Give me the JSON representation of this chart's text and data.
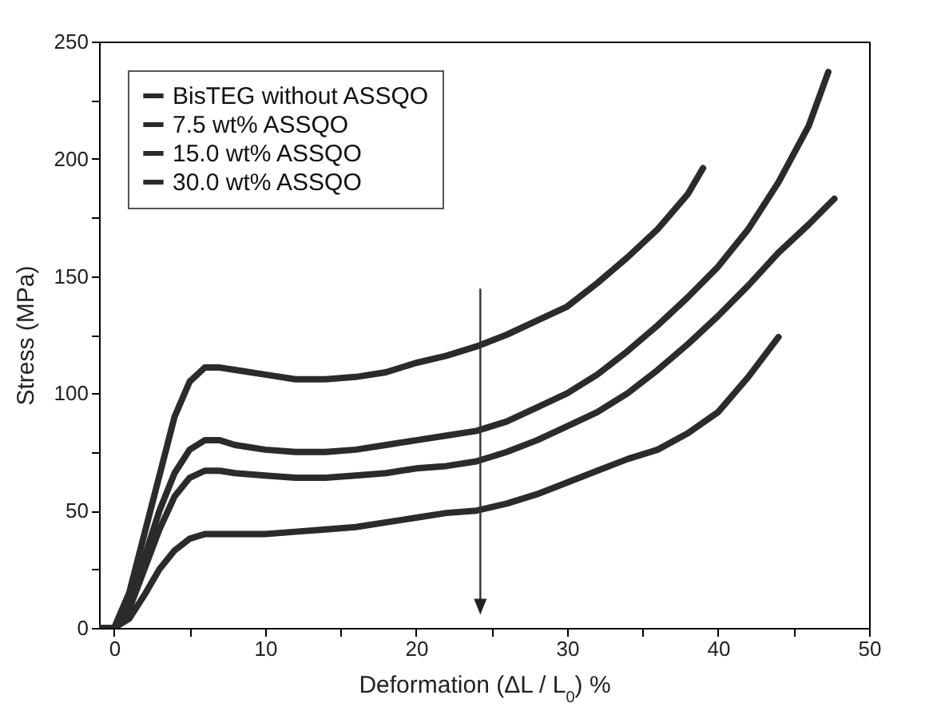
{
  "chart_data": {
    "type": "line",
    "xlabel": "Deformation (ΔL / L$_{0}$) %",
    "ylabel": "Stress (MPa)",
    "xlim": [
      -1,
      50
    ],
    "xticks": [
      0,
      {
        "value": 5,
        "label": null
      },
      10,
      {
        "value": 15,
        "label": null
      },
      20,
      {
        "value": 25,
        "label": null
      },
      30,
      {
        "value": 35,
        "label": null
      },
      40,
      {
        "value": 45,
        "label": null
      },
      50
    ],
    "ylim": [
      0,
      250
    ],
    "yticks": [
      0,
      {
        "value": 25,
        "label": null
      },
      50,
      {
        "value": 75,
        "label": null
      },
      100,
      {
        "value": 125,
        "label": null
      },
      150,
      {
        "value": 175,
        "label": null
      },
      200,
      {
        "value": 225,
        "label": null
      },
      250
    ],
    "grid": false,
    "legend": "top left",
    "marker": "none",
    "line_style": "solid",
    "series": [
      {
        "name": "BisTEG without ASSQO",
        "color": "#2b2b2b",
        "x": [
          -1,
          0,
          1,
          2,
          3,
          4,
          5,
          6,
          7,
          8,
          10,
          12,
          14,
          16,
          18,
          20,
          22,
          24,
          26,
          28,
          30,
          32,
          34,
          36,
          38,
          39
        ],
        "values": [
          0,
          0,
          15,
          40,
          65,
          90,
          105,
          111,
          111,
          110,
          108,
          106,
          106,
          107,
          109,
          113,
          116,
          120,
          125,
          131,
          137,
          147,
          158,
          170,
          185,
          196
        ]
      },
      {
        "name": " 7.5 wt% ASSQO",
        "color": "#2b2b2b",
        "x": [
          -1,
          0,
          1,
          2,
          3,
          4,
          5,
          6,
          7,
          8,
          10,
          12,
          14,
          16,
          18,
          20,
          22,
          24,
          26,
          28,
          30,
          32,
          34,
          36,
          38,
          40,
          42,
          44,
          46,
          47.3
        ],
        "values": [
          0,
          0,
          10,
          30,
          50,
          66,
          76,
          80,
          80,
          78,
          76,
          75,
          75,
          76,
          78,
          80,
          82,
          84,
          88,
          94,
          100,
          108,
          118,
          129,
          141,
          154,
          170,
          190,
          214,
          237
        ]
      },
      {
        "name": "15.0 wt% ASSQO",
        "color": "#2b2b2b",
        "x": [
          -1,
          0,
          1,
          2,
          3,
          4,
          5,
          6,
          7,
          8,
          10,
          12,
          14,
          16,
          18,
          20,
          22,
          24,
          26,
          28,
          30,
          32,
          34,
          36,
          38,
          40,
          42,
          44,
          46,
          47.7
        ],
        "values": [
          0,
          0,
          8,
          25,
          42,
          56,
          64,
          67,
          67,
          66,
          65,
          64,
          64,
          65,
          66,
          68,
          69,
          71,
          75,
          80,
          86,
          92,
          100,
          110,
          121,
          133,
          146,
          160,
          172,
          183
        ]
      },
      {
        "name": "30.0 wt% ASSQO",
        "color": "#2b2b2b",
        "x": [
          -1,
          0,
          1,
          2,
          3,
          4,
          5,
          6,
          7,
          8,
          10,
          12,
          14,
          16,
          18,
          20,
          22,
          24,
          26,
          28,
          30,
          32,
          34,
          36,
          38,
          40,
          42,
          44
        ],
        "values": [
          0,
          0,
          4,
          14,
          25,
          33,
          38,
          40,
          40,
          40,
          40,
          41,
          42,
          43,
          45,
          47,
          49,
          50,
          53,
          57,
          62,
          67,
          72,
          76,
          83,
          92,
          107,
          124
        ]
      }
    ]
  }
}
